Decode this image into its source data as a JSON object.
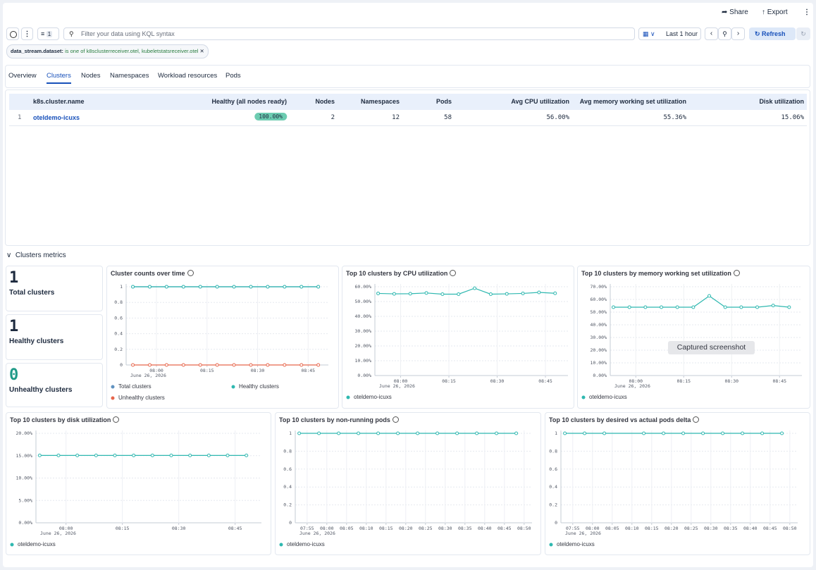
{
  "toolbar": {
    "share": "Share",
    "export": "Export"
  },
  "query_bar": {
    "filter_count": 1,
    "placeholder": "Filter your data using KQL syntax",
    "time_range": "Last 1 hour",
    "refresh": "Refresh"
  },
  "filter_pill": {
    "field": "data_stream.dataset:",
    "text": "is one of k8sclusterreceiver.otel, kubeletstatsreceiver.otel"
  },
  "tabs": [
    "Overview",
    "Clusters",
    "Nodes",
    "Namespaces",
    "Workload resources",
    "Pods"
  ],
  "active_tab": 1,
  "table": {
    "columns": [
      "k8s.cluster.name",
      "Healthy (all nodes ready)",
      "Nodes",
      "Namespaces",
      "Pods",
      "Avg CPU utilization",
      "Avg memory working set utilization",
      "Disk utilization"
    ],
    "rows": [
      [
        1,
        "oteldemo-icuxs",
        "100.00%",
        2,
        12,
        58,
        "56.00%",
        "55.36%",
        "15.06%"
      ]
    ]
  },
  "section_title": "Clusters metrics",
  "stats": [
    {
      "value": 1,
      "label": "Total clusters"
    },
    {
      "value": 1,
      "label": "Healthy clusters"
    },
    {
      "value": 0,
      "label": "Unhealthy clusters"
    }
  ],
  "overlay": "Captured screenshot",
  "chart_data": [
    {
      "type": "line",
      "title": "Cluster counts over time",
      "grid": true,
      "x": [
        "07:53",
        "07:58",
        "08:03",
        "08:08",
        "08:13",
        "08:18",
        "08:23",
        "08:28",
        "08:33",
        "08:38",
        "08:43",
        "08:48"
      ],
      "series": [
        {
          "name": "Total clusters",
          "color": "#6092c0",
          "values": [
            1,
            1,
            1,
            1,
            1,
            1,
            1,
            1,
            1,
            1,
            1,
            1
          ]
        },
        {
          "name": "Healthy clusters",
          "color": "#2fb8b0",
          "values": [
            1,
            1,
            1,
            1,
            1,
            1,
            1,
            1,
            1,
            1,
            1,
            1
          ]
        },
        {
          "name": "Unhealthy clusters",
          "color": "#e7664c",
          "values": [
            0,
            0,
            0,
            0,
            0,
            0,
            0,
            0,
            0,
            0,
            0,
            0
          ]
        }
      ],
      "xlim": [
        "07:51",
        "08:51"
      ],
      "xticks": [
        "08:00",
        "08:15",
        "08:30",
        "08:45"
      ],
      "x_date_label": "June 26, 2026",
      "ylim": [
        0,
        1
      ],
      "yticks": [
        0,
        0.2,
        0.4,
        0.6,
        0.8,
        1
      ]
    },
    {
      "type": "line",
      "title": "Top 10 clusters by CPU utilization",
      "grid": true,
      "x": [
        "07:53",
        "07:58",
        "08:03",
        "08:08",
        "08:13",
        "08:18",
        "08:23",
        "08:28",
        "08:33",
        "08:38",
        "08:43",
        "08:48"
      ],
      "series": [
        {
          "name": "oteldemo-icuxs",
          "color": "#2fb8b0",
          "values": [
            55.5,
            55.2,
            55.3,
            55.8,
            55.0,
            55.0,
            59.0,
            55.0,
            55.2,
            55.5,
            56.2,
            55.6
          ]
        }
      ],
      "xlim": [
        "07:52",
        "08:52"
      ],
      "xticks": [
        "08:00",
        "08:15",
        "08:30",
        "08:45"
      ],
      "x_date_label": "June 26, 2026",
      "ylim": [
        0,
        60
      ],
      "yticks": [
        {
          "value": 0,
          "label": "0.00%"
        },
        {
          "value": 10,
          "label": "10.00%"
        },
        {
          "value": 20,
          "label": "20.00%"
        },
        {
          "value": 30,
          "label": "30.00%"
        },
        {
          "value": 40,
          "label": "40.00%"
        },
        {
          "value": 50,
          "label": "50.00%"
        },
        {
          "value": 60,
          "label": "60.00%"
        }
      ]
    },
    {
      "type": "line",
      "title": "Top 10 clusters by memory working set utilization",
      "grid": true,
      "x": [
        "07:53",
        "07:58",
        "08:03",
        "08:08",
        "08:13",
        "08:18",
        "08:23",
        "08:28",
        "08:33",
        "08:38",
        "08:43",
        "08:48"
      ],
      "series": [
        {
          "name": "oteldemo-icuxs",
          "color": "#2fb8b0",
          "values": [
            53.9,
            53.9,
            53.9,
            53.9,
            53.9,
            53.9,
            62.8,
            53.9,
            53.9,
            53.9,
            55.2,
            53.9
          ]
        }
      ],
      "xlim": [
        "07:52",
        "08:52"
      ],
      "xticks": [
        "08:00",
        "08:15",
        "08:30",
        "08:45"
      ],
      "x_date_label": "June 26, 2026",
      "ylim": [
        0,
        70
      ],
      "yticks": [
        {
          "value": 0,
          "label": "0.00%"
        },
        {
          "value": 10,
          "label": "10.00%"
        },
        {
          "value": 20,
          "label": "20.00%"
        },
        {
          "value": 30,
          "label": "30.00%"
        },
        {
          "value": 40,
          "label": "40.00%"
        },
        {
          "value": 50,
          "label": "50.00%"
        },
        {
          "value": 60,
          "label": "60.00%"
        },
        {
          "value": 70,
          "label": "70.00%"
        }
      ]
    },
    {
      "type": "line",
      "title": "Top 10 clusters by disk utilization",
      "grid": true,
      "x": [
        "07:53",
        "07:58",
        "08:03",
        "08:08",
        "08:13",
        "08:18",
        "08:23",
        "08:28",
        "08:33",
        "08:38",
        "08:43",
        "08:48"
      ],
      "series": [
        {
          "name": "oteldemo-icuxs",
          "color": "#2fb8b0",
          "values": [
            15.06,
            15.06,
            15.06,
            15.06,
            15.06,
            15.06,
            15.06,
            15.06,
            15.06,
            15.06,
            15.06,
            15.06
          ]
        }
      ],
      "xlim": [
        "07:52",
        "08:52"
      ],
      "xticks": [
        "08:00",
        "08:15",
        "08:30",
        "08:45"
      ],
      "x_date_label": "June 26, 2026",
      "ylim": [
        0,
        20
      ],
      "yticks": [
        {
          "value": 0,
          "label": "0.00%"
        },
        {
          "value": 5,
          "label": "5.00%"
        },
        {
          "value": 10,
          "label": "10.00%"
        },
        {
          "value": 15,
          "label": "15.00%"
        },
        {
          "value": 20,
          "label": "20.00%"
        }
      ]
    },
    {
      "type": "line",
      "title": "Top 10 clusters by non-running pods",
      "grid": true,
      "x": [
        "07:53",
        "07:58",
        "08:03",
        "08:08",
        "08:13",
        "08:18",
        "08:23",
        "08:28",
        "08:33",
        "08:38",
        "08:43",
        "08:48"
      ],
      "series": [
        {
          "name": "oteldemo-icuxs",
          "color": "#2fb8b0",
          "values": [
            1,
            1,
            1,
            1,
            1,
            1,
            1,
            1,
            1,
            1,
            1,
            1
          ]
        }
      ],
      "xlim": [
        "07:52",
        "08:52"
      ],
      "xticks": [
        "07:55",
        "08:00",
        "08:05",
        "08:10",
        "08:15",
        "08:20",
        "08:25",
        "08:30",
        "08:35",
        "08:40",
        "08:45",
        "08:50"
      ],
      "x_date_label": "June 26, 2026",
      "ylim": [
        0,
        1
      ],
      "yticks": [
        0,
        0.2,
        0.4,
        0.6,
        0.8,
        1
      ]
    },
    {
      "type": "line",
      "title": "Top 10 clusters by desired vs actual pods delta",
      "grid": true,
      "x": [
        "07:53",
        "07:58",
        "08:03",
        "08:13",
        "08:18",
        "08:23",
        "08:28",
        "08:33",
        "08:38",
        "08:43",
        "08:48"
      ],
      "series": [
        {
          "name": "oteldemo-icuxs",
          "color": "#2fb8b0",
          "values": [
            1,
            1,
            1,
            1,
            1,
            1,
            1,
            1,
            1,
            1,
            1
          ]
        }
      ],
      "xlim": [
        "07:52",
        "08:52"
      ],
      "xticks": [
        "07:55",
        "08:00",
        "08:05",
        "08:10",
        "08:15",
        "08:20",
        "08:25",
        "08:30",
        "08:35",
        "08:40",
        "08:45",
        "08:50"
      ],
      "x_date_label": "June 26, 2026",
      "ylim": [
        0,
        1
      ],
      "yticks": [
        0,
        0.2,
        0.4,
        0.6,
        0.8,
        1
      ]
    }
  ]
}
